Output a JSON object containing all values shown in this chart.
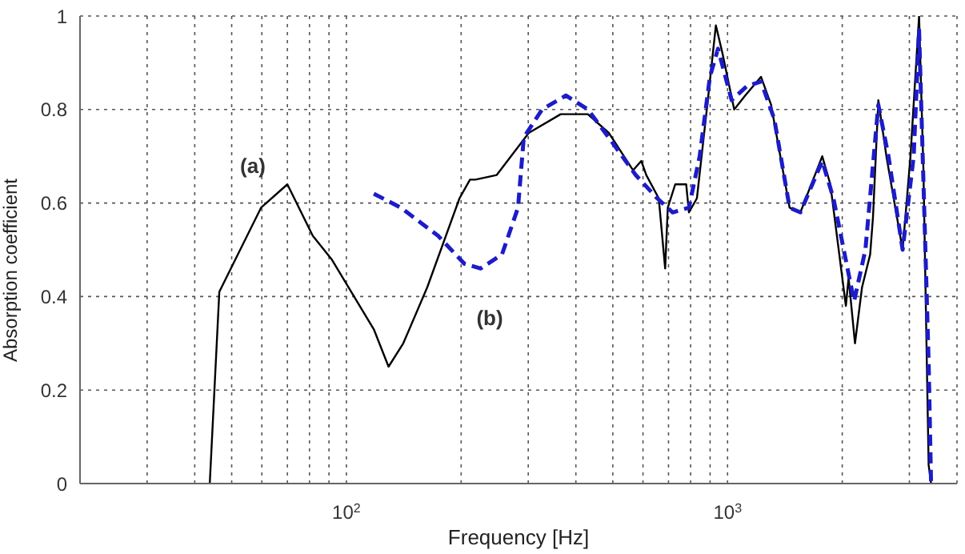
{
  "chart_data": {
    "type": "line",
    "xlabel": "Frequency [Hz]",
    "ylabel": "Absorption coefficient",
    "log": "x",
    "grid": true,
    "legend": false,
    "marker": "none",
    "xlim": [
      20,
      4000
    ],
    "ylim": [
      0,
      1
    ],
    "xticks": [
      {
        "value": 30,
        "label": null
      },
      {
        "value": 40,
        "label": null
      },
      {
        "value": 50,
        "label": null
      },
      {
        "value": 60,
        "label": null
      },
      {
        "value": 70,
        "label": null
      },
      {
        "value": 80,
        "label": null
      },
      {
        "value": 90,
        "label": null
      },
      {
        "value": 100,
        "label": "10$^{2}$"
      },
      {
        "value": 200,
        "label": null
      },
      {
        "value": 300,
        "label": null
      },
      {
        "value": 400,
        "label": null
      },
      {
        "value": 500,
        "label": null
      },
      {
        "value": 600,
        "label": null
      },
      {
        "value": 700,
        "label": null
      },
      {
        "value": 800,
        "label": null
      },
      {
        "value": 900,
        "label": null
      },
      {
        "value": 1000,
        "label": "10$^{3}$"
      },
      {
        "value": 2000,
        "label": null
      },
      {
        "value": 3000,
        "label": null
      },
      {
        "value": 4000,
        "label": null
      }
    ],
    "yticks": [
      0,
      0.2,
      0.4,
      0.6,
      0.8,
      1
    ],
    "annotations": [
      "(a)",
      "(b)"
    ],
    "series": [
      {
        "color": "#000000",
        "line_style": "solid",
        "x": [
          43.8,
          46.4,
          59.7,
          70,
          81.6,
          91.4,
          118,
          129,
          141,
          163,
          198,
          211,
          218,
          248,
          301,
          365,
          430,
          488,
          565,
          594,
          612,
          660,
          686,
          697,
          729,
          779,
          792,
          831,
          885,
          932,
          970,
          1041,
          1113,
          1224,
          1301,
          1455,
          1553,
          1772,
          1861,
          2044,
          2078,
          2160,
          2254,
          2367,
          2408,
          2487,
          2611,
          2880,
          3020,
          3181,
          3266,
          3370,
          3420
        ],
        "values": [
          0,
          0.41,
          0.59,
          0.64,
          0.53,
          0.48,
          0.33,
          0.25,
          0.3,
          0.42,
          0.61,
          0.65,
          0.65,
          0.66,
          0.75,
          0.79,
          0.79,
          0.75,
          0.67,
          0.69,
          0.66,
          0.61,
          0.46,
          0.59,
          0.64,
          0.64,
          0.58,
          0.61,
          0.81,
          0.98,
          0.92,
          0.8,
          0.83,
          0.87,
          0.81,
          0.59,
          0.58,
          0.7,
          0.64,
          0.38,
          0.44,
          0.3,
          0.42,
          0.49,
          0.57,
          0.82,
          0.7,
          0.5,
          0.7,
          1,
          0.67,
          0.04,
          0
        ]
      },
      {
        "color": "#1c1cc8",
        "line_style": "dashed",
        "x": [
          118,
          139,
          174,
          204,
          225,
          256,
          282,
          292,
          326,
          377,
          430,
          488,
          574,
          654,
          718,
          792,
          845,
          899,
          944,
          1025,
          1124,
          1224,
          1326,
          1455,
          1553,
          1772,
          1896,
          2148,
          2300,
          2487,
          2644,
          2880,
          3079,
          3181,
          3370,
          3420
        ],
        "values": [
          0.62,
          0.59,
          0.53,
          0.47,
          0.46,
          0.49,
          0.59,
          0.74,
          0.8,
          0.83,
          0.8,
          0.74,
          0.66,
          0.61,
          0.58,
          0.59,
          0.7,
          0.87,
          0.93,
          0.82,
          0.85,
          0.86,
          0.78,
          0.59,
          0.58,
          0.69,
          0.61,
          0.39,
          0.5,
          0.81,
          0.7,
          0.5,
          0.7,
          0.97,
          0.26,
          0
        ]
      }
    ]
  }
}
